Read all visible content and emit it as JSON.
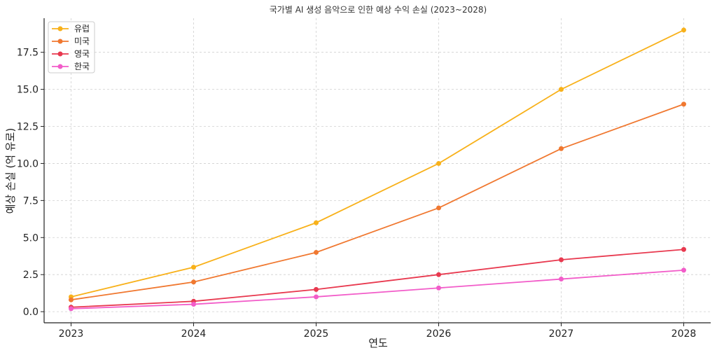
{
  "chart_data": {
    "type": "line",
    "title": "국가별 AI 생성 음악으로 인한 예상 수익 손실 (2023~2028)",
    "xlabel": "연도",
    "ylabel": "예상 손실 (억 유로)",
    "x": [
      2023,
      2024,
      2025,
      2026,
      2027,
      2028
    ],
    "x_tick_labels": [
      "2023",
      "2024",
      "2025",
      "2026",
      "2027",
      "2028"
    ],
    "ylim": [
      -0.75,
      19.8
    ],
    "y_ticks": [
      0,
      2.5,
      5,
      7.5,
      10,
      12.5,
      15,
      17.5
    ],
    "y_tick_labels": [
      "0.0",
      "2.5",
      "5.0",
      "7.5",
      "10.0",
      "12.5",
      "15.0",
      "17.5"
    ],
    "grid": true,
    "legend_position": "top-left",
    "series": [
      {
        "name": "유럽",
        "color": "#f8b11a",
        "values": [
          1.0,
          3.0,
          6.0,
          10.0,
          15.0,
          19.0
        ]
      },
      {
        "name": "미국",
        "color": "#f07830",
        "values": [
          0.8,
          2.0,
          4.0,
          7.0,
          11.0,
          14.0
        ]
      },
      {
        "name": "영국",
        "color": "#e8394f",
        "values": [
          0.3,
          0.7,
          1.5,
          2.5,
          3.5,
          4.2
        ]
      },
      {
        "name": "한국",
        "color": "#f25cc9",
        "values": [
          0.2,
          0.5,
          1.0,
          1.6,
          2.2,
          2.8
        ]
      }
    ]
  }
}
